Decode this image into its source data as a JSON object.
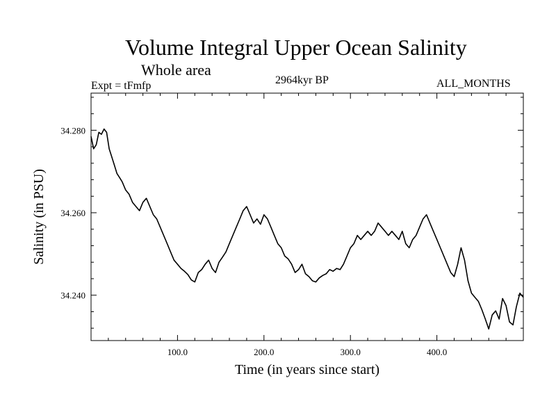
{
  "chart_data": {
    "type": "line",
    "title": "Volume Integral Upper Ocean Salinity",
    "subtitle": "Whole area",
    "experiment_label": "Expt = tFmfp",
    "period_label": "2964kyr BP",
    "months_label": "ALL_MONTHS",
    "xlabel": "Time (in years since start)",
    "ylabel": "Salinity (in PSU)",
    "xlim": [
      0,
      500
    ],
    "ylim": [
      34.229,
      34.289
    ],
    "x_ticks": [
      100,
      200,
      300,
      400
    ],
    "x_tick_labels": [
      "100.0",
      "200.0",
      "300.0",
      "400.0"
    ],
    "y_ticks": [
      34.24,
      34.26,
      34.28
    ],
    "y_tick_labels": [
      "34.240",
      "34.260",
      "34.280"
    ],
    "grid": false,
    "series": [
      {
        "name": "Salinity",
        "x": [
          0,
          3,
          6,
          9,
          12,
          15,
          18,
          21,
          24,
          27,
          30,
          33,
          36,
          40,
          44,
          48,
          52,
          56,
          60,
          64,
          68,
          72,
          76,
          80,
          84,
          88,
          92,
          96,
          100,
          104,
          108,
          112,
          116,
          120,
          124,
          128,
          132,
          136,
          140,
          144,
          148,
          152,
          156,
          160,
          164,
          168,
          172,
          176,
          180,
          184,
          188,
          192,
          196,
          200,
          204,
          208,
          212,
          216,
          220,
          224,
          228,
          232,
          236,
          240,
          244,
          248,
          252,
          256,
          260,
          264,
          268,
          272,
          276,
          280,
          284,
          288,
          292,
          296,
          300,
          304,
          308,
          312,
          316,
          320,
          324,
          328,
          332,
          336,
          340,
          344,
          348,
          352,
          356,
          360,
          364,
          368,
          372,
          376,
          380,
          384,
          388,
          392,
          396,
          400,
          404,
          408,
          412,
          416,
          420,
          424,
          428,
          432,
          436,
          440,
          444,
          448,
          452,
          456,
          460,
          464,
          468,
          472,
          476,
          480,
          484,
          488,
          492,
          496,
          500
        ],
        "values": [
          34.2785,
          34.2755,
          34.2765,
          34.2795,
          34.279,
          34.2803,
          34.2795,
          34.2755,
          34.2735,
          34.2715,
          34.2695,
          34.2685,
          34.2675,
          34.2655,
          34.2645,
          34.2625,
          34.2615,
          34.2605,
          34.2625,
          34.2635,
          34.2615,
          34.2595,
          34.2585,
          34.2565,
          34.2545,
          34.2525,
          34.2505,
          34.2485,
          34.2475,
          34.2465,
          34.2458,
          34.245,
          34.2437,
          34.2432,
          34.2455,
          34.2462,
          34.2475,
          34.2485,
          34.2465,
          34.2455,
          34.248,
          34.2492,
          34.2505,
          34.2525,
          34.2545,
          34.2565,
          34.2585,
          34.2605,
          34.2615,
          34.2595,
          34.2575,
          34.2585,
          34.2572,
          34.2595,
          34.2585,
          34.2565,
          34.2545,
          34.2525,
          34.2515,
          34.2495,
          34.2488,
          34.2475,
          34.2455,
          34.2462,
          34.2475,
          34.2452,
          34.2445,
          34.2435,
          34.2432,
          34.2442,
          34.2448,
          34.2452,
          34.2462,
          34.2458,
          34.2465,
          34.2462,
          34.2475,
          34.2495,
          34.2515,
          34.2525,
          34.2545,
          34.2535,
          34.2545,
          34.2555,
          34.2545,
          34.2555,
          34.2575,
          34.2565,
          34.2555,
          34.2545,
          34.2555,
          34.2545,
          34.2535,
          34.2555,
          34.2525,
          34.2515,
          34.2535,
          34.2545,
          34.2565,
          34.2585,
          34.2595,
          34.2575,
          34.2555,
          34.2535,
          34.2515,
          34.2495,
          34.2475,
          34.2455,
          34.2445,
          34.2475,
          34.2515,
          34.2485,
          34.2435,
          34.2405,
          34.2395,
          34.2385,
          34.2365,
          34.2342,
          34.2318,
          34.2352,
          34.2362,
          34.2342,
          34.2392,
          34.2375,
          34.2335,
          34.2328,
          34.2372,
          34.2405,
          34.2395
        ]
      }
    ]
  }
}
